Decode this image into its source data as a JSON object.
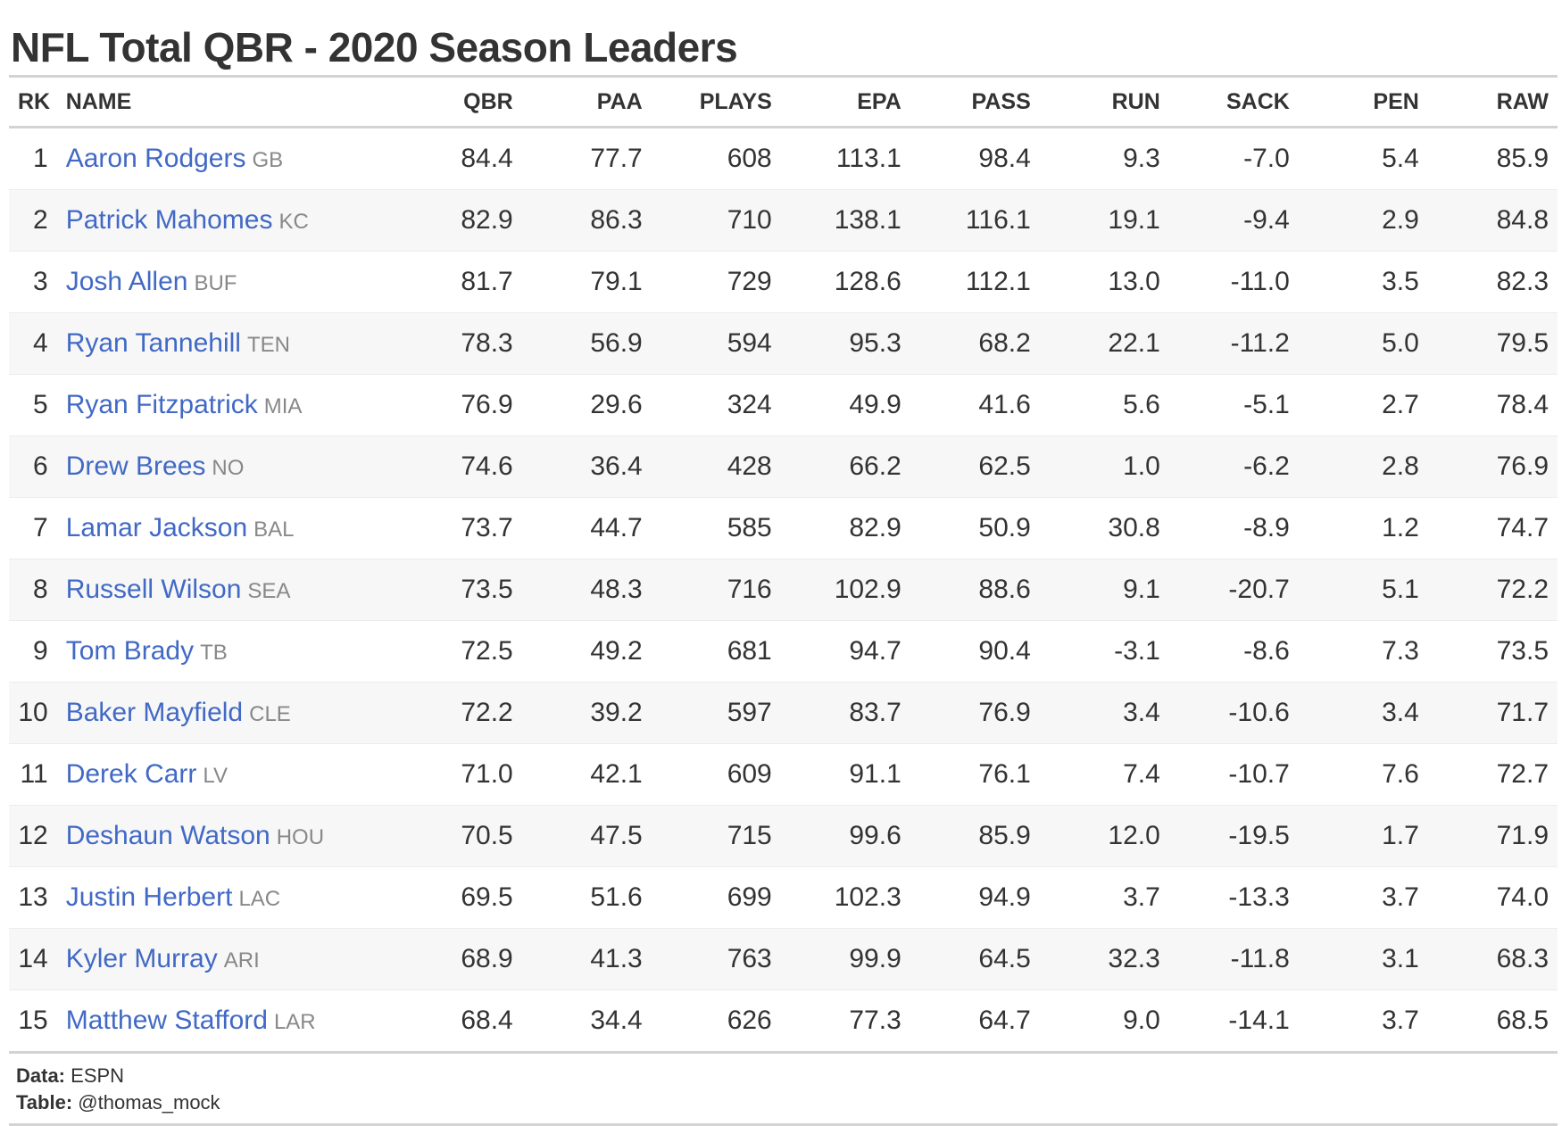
{
  "chart_data": {
    "type": "table",
    "title": "NFL Total QBR - 2020 Season Leaders",
    "columns": [
      "RK",
      "NAME",
      "QBR",
      "PAA",
      "PLAYS",
      "EPA",
      "PASS",
      "RUN",
      "SACK",
      "PEN",
      "RAW"
    ],
    "rows": [
      {
        "rk": "1",
        "name": "Aaron Rodgers",
        "team": "GB",
        "qbr": "84.4",
        "paa": "77.7",
        "plays": "608",
        "epa": "113.1",
        "pass": "98.4",
        "run": "9.3",
        "sack": "-7.0",
        "pen": "5.4",
        "raw": "85.9"
      },
      {
        "rk": "2",
        "name": "Patrick Mahomes",
        "team": "KC",
        "qbr": "82.9",
        "paa": "86.3",
        "plays": "710",
        "epa": "138.1",
        "pass": "116.1",
        "run": "19.1",
        "sack": "-9.4",
        "pen": "2.9",
        "raw": "84.8"
      },
      {
        "rk": "3",
        "name": "Josh Allen",
        "team": "BUF",
        "qbr": "81.7",
        "paa": "79.1",
        "plays": "729",
        "epa": "128.6",
        "pass": "112.1",
        "run": "13.0",
        "sack": "-11.0",
        "pen": "3.5",
        "raw": "82.3"
      },
      {
        "rk": "4",
        "name": "Ryan Tannehill",
        "team": "TEN",
        "qbr": "78.3",
        "paa": "56.9",
        "plays": "594",
        "epa": "95.3",
        "pass": "68.2",
        "run": "22.1",
        "sack": "-11.2",
        "pen": "5.0",
        "raw": "79.5"
      },
      {
        "rk": "5",
        "name": "Ryan Fitzpatrick",
        "team": "MIA",
        "qbr": "76.9",
        "paa": "29.6",
        "plays": "324",
        "epa": "49.9",
        "pass": "41.6",
        "run": "5.6",
        "sack": "-5.1",
        "pen": "2.7",
        "raw": "78.4"
      },
      {
        "rk": "6",
        "name": "Drew Brees",
        "team": "NO",
        "qbr": "74.6",
        "paa": "36.4",
        "plays": "428",
        "epa": "66.2",
        "pass": "62.5",
        "run": "1.0",
        "sack": "-6.2",
        "pen": "2.8",
        "raw": "76.9"
      },
      {
        "rk": "7",
        "name": "Lamar Jackson",
        "team": "BAL",
        "qbr": "73.7",
        "paa": "44.7",
        "plays": "585",
        "epa": "82.9",
        "pass": "50.9",
        "run": "30.8",
        "sack": "-8.9",
        "pen": "1.2",
        "raw": "74.7"
      },
      {
        "rk": "8",
        "name": "Russell Wilson",
        "team": "SEA",
        "qbr": "73.5",
        "paa": "48.3",
        "plays": "716",
        "epa": "102.9",
        "pass": "88.6",
        "run": "9.1",
        "sack": "-20.7",
        "pen": "5.1",
        "raw": "72.2"
      },
      {
        "rk": "9",
        "name": "Tom Brady",
        "team": "TB",
        "qbr": "72.5",
        "paa": "49.2",
        "plays": "681",
        "epa": "94.7",
        "pass": "90.4",
        "run": "-3.1",
        "sack": "-8.6",
        "pen": "7.3",
        "raw": "73.5"
      },
      {
        "rk": "10",
        "name": "Baker Mayfield",
        "team": "CLE",
        "qbr": "72.2",
        "paa": "39.2",
        "plays": "597",
        "epa": "83.7",
        "pass": "76.9",
        "run": "3.4",
        "sack": "-10.6",
        "pen": "3.4",
        "raw": "71.7"
      },
      {
        "rk": "11",
        "name": "Derek Carr",
        "team": "LV",
        "qbr": "71.0",
        "paa": "42.1",
        "plays": "609",
        "epa": "91.1",
        "pass": "76.1",
        "run": "7.4",
        "sack": "-10.7",
        "pen": "7.6",
        "raw": "72.7"
      },
      {
        "rk": "12",
        "name": "Deshaun Watson",
        "team": "HOU",
        "qbr": "70.5",
        "paa": "47.5",
        "plays": "715",
        "epa": "99.6",
        "pass": "85.9",
        "run": "12.0",
        "sack": "-19.5",
        "pen": "1.7",
        "raw": "71.9"
      },
      {
        "rk": "13",
        "name": "Justin Herbert",
        "team": "LAC",
        "qbr": "69.5",
        "paa": "51.6",
        "plays": "699",
        "epa": "102.3",
        "pass": "94.9",
        "run": "3.7",
        "sack": "-13.3",
        "pen": "3.7",
        "raw": "74.0"
      },
      {
        "rk": "14",
        "name": "Kyler Murray",
        "team": "ARI",
        "qbr": "68.9",
        "paa": "41.3",
        "plays": "763",
        "epa": "99.9",
        "pass": "64.5",
        "run": "32.3",
        "sack": "-11.8",
        "pen": "3.1",
        "raw": "68.3"
      },
      {
        "rk": "15",
        "name": "Matthew Stafford",
        "team": "LAR",
        "qbr": "68.4",
        "paa": "34.4",
        "plays": "626",
        "epa": "77.3",
        "pass": "64.7",
        "run": "9.0",
        "sack": "-14.1",
        "pen": "3.7",
        "raw": "68.5"
      }
    ],
    "source_label": "Data:",
    "source_value": "ESPN",
    "credit_label": "Table:",
    "credit_value": "@thomas_mock",
    "colors": {
      "name_link": "#4169c5",
      "team_text": "#888888",
      "rule": "#d3d3d3",
      "stripe": "#f7f7f7"
    }
  }
}
